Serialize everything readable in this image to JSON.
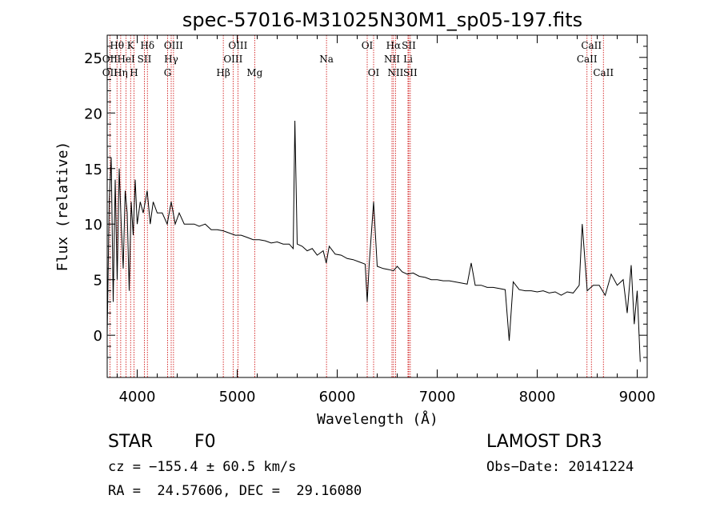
{
  "chart_data": {
    "type": "line",
    "title": "spec-57016-M31025N30M1_sp05-197.fits",
    "xlabel": "Wavelength (Å)",
    "ylabel": "Flux (relative)",
    "xlim": [
      3700,
      9100
    ],
    "ylim": [
      -3.8,
      27
    ],
    "xticks": [
      4000,
      5000,
      6000,
      7000,
      8000,
      9000
    ],
    "yticks": [
      0,
      5,
      10,
      15,
      20,
      25
    ],
    "spectrum": {
      "x": [
        3700,
        3720,
        3740,
        3760,
        3780,
        3800,
        3820,
        3840,
        3860,
        3880,
        3900,
        3920,
        3940,
        3960,
        3980,
        4000,
        4030,
        4060,
        4100,
        4130,
        4160,
        4200,
        4250,
        4300,
        4340,
        4380,
        4420,
        4470,
        4520,
        4570,
        4620,
        4680,
        4740,
        4800,
        4860,
        4920,
        4980,
        5040,
        5100,
        5160,
        5220,
        5280,
        5340,
        5400,
        5460,
        5520,
        5560,
        5577,
        5600,
        5650,
        5700,
        5750,
        5800,
        5860,
        5890,
        5920,
        5980,
        6040,
        6100,
        6160,
        6220,
        6280,
        6300,
        6320,
        6364,
        6400,
        6460,
        6520,
        6563,
        6600,
        6650,
        6700,
        6760,
        6820,
        6880,
        6940,
        7000,
        7060,
        7120,
        7180,
        7240,
        7300,
        7340,
        7380,
        7440,
        7500,
        7560,
        7620,
        7680,
        7720,
        7760,
        7820,
        7880,
        7940,
        8000,
        8060,
        8120,
        8180,
        8240,
        8300,
        8360,
        8420,
        8450,
        8500,
        8560,
        8620,
        8680,
        8740,
        8800,
        8860,
        8900,
        8940,
        8970,
        9000,
        9030
      ],
      "y": [
        0,
        12,
        16,
        3,
        14,
        5,
        15,
        10,
        6,
        13,
        11,
        4,
        12,
        9,
        14,
        10,
        12,
        11,
        13,
        10,
        12,
        11,
        11,
        10,
        12,
        10,
        11,
        10,
        10,
        10,
        9.8,
        10,
        9.5,
        9.5,
        9.4,
        9.2,
        9.0,
        9.0,
        8.8,
        8.6,
        8.6,
        8.5,
        8.3,
        8.4,
        8.2,
        8.2,
        7.8,
        19.3,
        8.2,
        8.0,
        7.6,
        7.8,
        7.2,
        7.6,
        6.5,
        8.0,
        7.3,
        7.2,
        6.9,
        6.8,
        6.6,
        6.4,
        3,
        6.4,
        12,
        6.2,
        6.0,
        5.9,
        5.8,
        6.2,
        5.7,
        5.5,
        5.6,
        5.3,
        5.2,
        5.0,
        5.0,
        4.9,
        4.9,
        4.8,
        4.7,
        4.6,
        6.5,
        4.5,
        4.5,
        4.3,
        4.3,
        4.2,
        4.1,
        -0.5,
        4.8,
        4.1,
        4.0,
        4.0,
        3.9,
        4.0,
        3.8,
        3.9,
        3.6,
        3.9,
        3.8,
        4.5,
        10,
        4.0,
        4.5,
        4.5,
        3.6,
        5.5,
        4.5,
        5.0,
        2.0,
        6.3,
        1.0,
        4.0,
        -2.4
      ]
    },
    "lines": [
      {
        "label": "Hθ",
        "x": 3798,
        "row": 0
      },
      {
        "label": "OII",
        "x": 3727,
        "row": 1
      },
      {
        "label": "OII",
        "x": 3727,
        "row": 2
      },
      {
        "label": "K",
        "x": 3934,
        "row": 0
      },
      {
        "label": "HeI",
        "x": 3889,
        "row": 1
      },
      {
        "label": "Hη",
        "x": 3835,
        "row": 2
      },
      {
        "label": "SII",
        "x": 4072,
        "row": 1
      },
      {
        "label": "H",
        "x": 3968,
        "row": 2
      },
      {
        "label": "Hδ",
        "x": 4102,
        "row": 0
      },
      {
        "label": "OIII",
        "x": 4363,
        "row": 0
      },
      {
        "label": "Hγ",
        "x": 4340,
        "row": 1
      },
      {
        "label": "G",
        "x": 4304,
        "row": 2
      },
      {
        "label": "OIII",
        "x": 5007,
        "row": 0
      },
      {
        "label": "OIII",
        "x": 4959,
        "row": 1
      },
      {
        "label": "Hβ",
        "x": 4861,
        "row": 2
      },
      {
        "label": "Mg",
        "x": 5175,
        "row": 2
      },
      {
        "label": "Na",
        "x": 5893,
        "row": 1
      },
      {
        "label": "OI",
        "x": 6300,
        "row": 0
      },
      {
        "label": "OI",
        "x": 6364,
        "row": 2
      },
      {
        "label": "Hα",
        "x": 6563,
        "row": 0
      },
      {
        "label": "SII",
        "x": 6716,
        "row": 0
      },
      {
        "label": "NII",
        "x": 6548,
        "row": 1
      },
      {
        "label": "Li",
        "x": 6708,
        "row": 1
      },
      {
        "label": "NII",
        "x": 6583,
        "row": 2
      },
      {
        "label": "SII",
        "x": 6731,
        "row": 2
      },
      {
        "label": "CaII",
        "x": 8542,
        "row": 0
      },
      {
        "label": "CaII",
        "x": 8498,
        "row": 1
      },
      {
        "label": "CaII",
        "x": 8662,
        "row": 2
      }
    ]
  },
  "info": {
    "class": "STAR",
    "subclass": "F0",
    "survey": "LAMOST DR3",
    "cz": "cz = −155.4 ± 60.5 km/s",
    "obsdate": "Obs−Date: 20141224",
    "radec": "RA =  24.57606, DEC =  29.16080"
  },
  "colors": {
    "spectrum": "#000000",
    "line_marker": "#cc0000",
    "axes": "#000000"
  }
}
